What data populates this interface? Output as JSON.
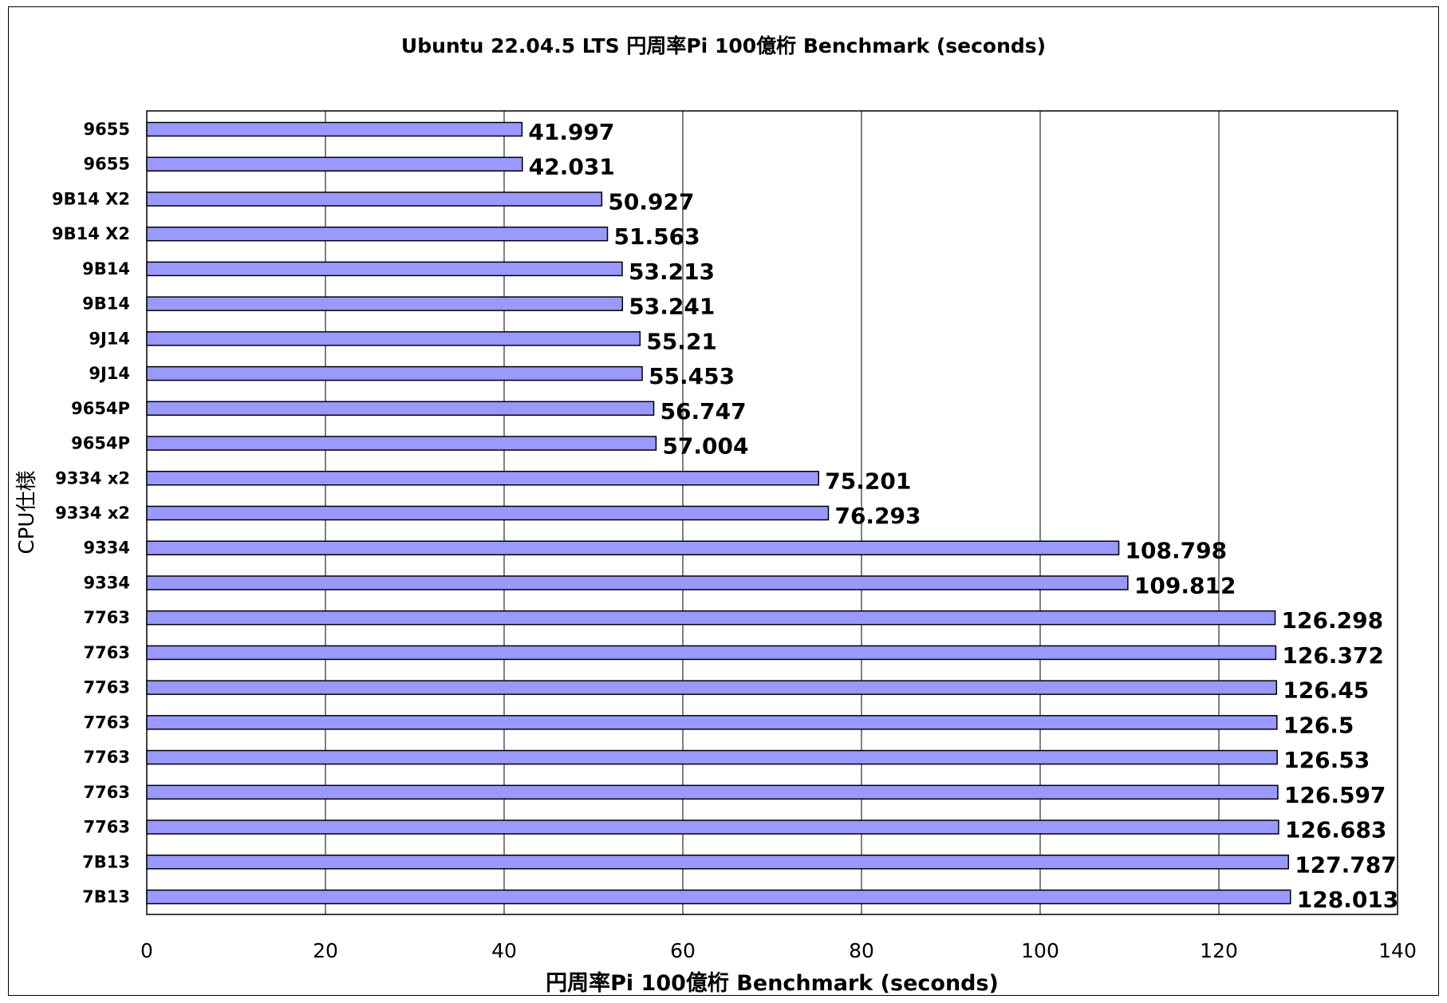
{
  "chart_data": {
    "type": "bar",
    "orientation": "horizontal",
    "title": "Ubuntu 22.04.5 LTS 円周率Pi  100億桁 Benchmark (seconds)",
    "xlabel": "円周率Pi 100億桁 Benchmark (seconds)",
    "ylabel": "CPU仕様",
    "xlim": [
      0,
      140
    ],
    "xticks": [
      0,
      20,
      40,
      60,
      80,
      100,
      120,
      140
    ],
    "grid": "vertical",
    "legend": "none",
    "bar_color": "#9999ff",
    "categories": [
      "9655",
      "9655",
      "9B14 X2",
      "9B14 X2",
      "9B14",
      "9B14",
      "9J14",
      "9J14",
      "9654P",
      "9654P",
      "9334 x2",
      "9334 x2",
      "9334",
      "9334",
      "7763",
      "7763",
      "7763",
      "7763",
      "7763",
      "7763",
      "7763",
      "7B13",
      "7B13"
    ],
    "values": [
      41.997,
      42.031,
      50.927,
      51.563,
      53.213,
      53.241,
      55.21,
      55.453,
      56.747,
      57.004,
      75.201,
      76.293,
      108.798,
      109.812,
      126.298,
      126.372,
      126.45,
      126.5,
      126.53,
      126.597,
      126.683,
      127.787,
      128.013
    ],
    "data_labels": [
      "41.997",
      "42.031",
      "50.927",
      "51.563",
      "53.213",
      "53.241",
      "55.21",
      "55.453",
      "56.747",
      "57.004",
      "75.201",
      "76.293",
      "108.798",
      "109.812",
      "126.298",
      "126.372",
      "126.45",
      "126.5",
      "126.53",
      "126.597",
      "126.683",
      "127.787",
      "128.013"
    ]
  }
}
